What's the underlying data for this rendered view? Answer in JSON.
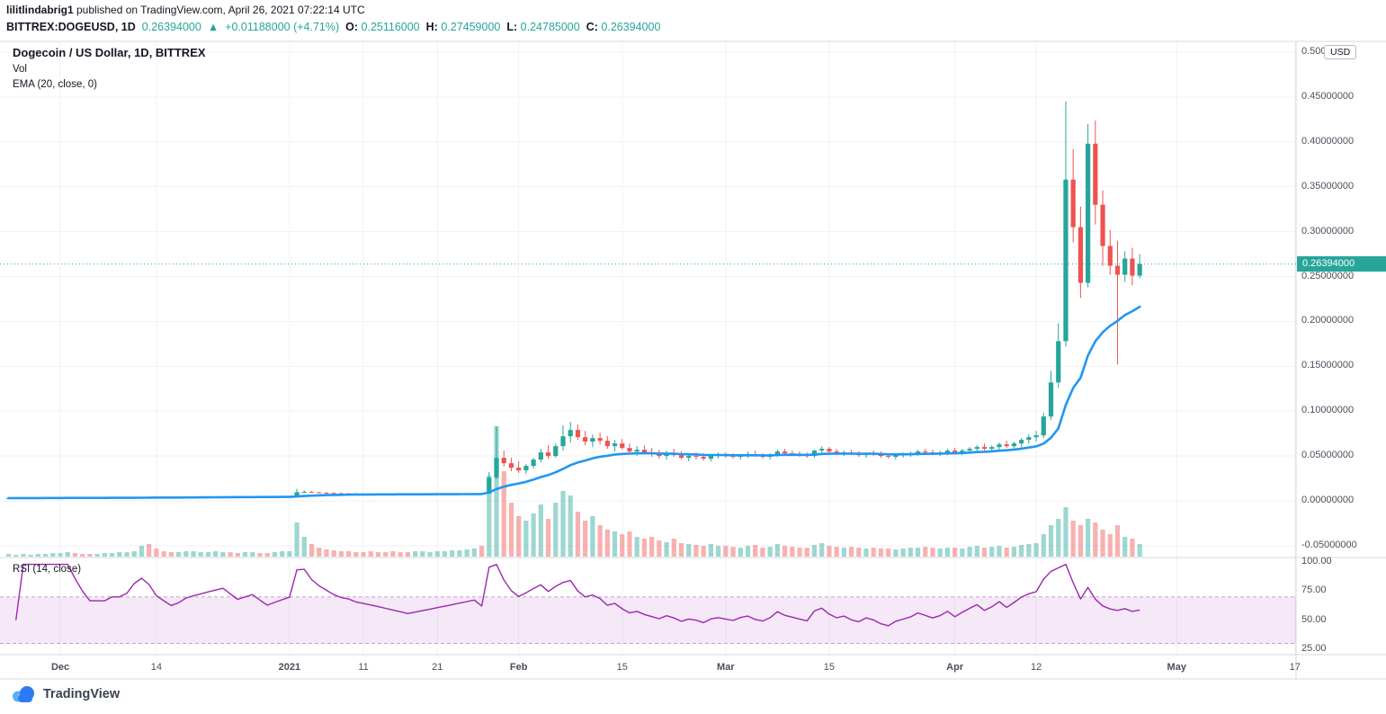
{
  "header": {
    "line1_user": "lilitlindabrig1",
    "line1_rest": " published on TradingView.com, April 26, 2021 07:22:14 UTC",
    "symbol": "BITTREX:DOGEUSD, 1D",
    "last": "0.26394000",
    "arrow": "▲",
    "change": "+0.01188000 (+4.71%)",
    "open_label": "O:",
    "open": "0.25116000",
    "high_label": "H:",
    "high": "0.27459000",
    "low_label": "L:",
    "low": "0.24785000",
    "close_label": "C:",
    "close": "0.26394000"
  },
  "legend": {
    "title": "Dogecoin / US Dollar, 1D, BITTREX",
    "vol": "Vol",
    "ema": "EMA (20, close, 0)",
    "rsi": "RSI (14, close)"
  },
  "footer": {
    "brand": "TradingView"
  },
  "chart_data": {
    "type": "candlestick",
    "title": "Dogecoin / US Dollar, 1D, BITTREX",
    "symbol": "BITTREX:DOGEUSD",
    "interval": "1D",
    "unit": "USD",
    "last_price": 0.26394,
    "last_price_label": "0.26394000",
    "ema_period": 20,
    "rsi_period": 14,
    "rsi_bands": [
      70,
      30
    ],
    "colors": {
      "up": "#26a69a",
      "down": "#ef5350",
      "ema": "#2196f3",
      "rsi": "#9c27b0",
      "band_fill": "#9c27b0",
      "badge": "#26a69a",
      "grid": "#f0f2f5",
      "frame": "#d6d8dc"
    },
    "price_axis_ticks": [
      {
        "label": "0.50000000",
        "v": 0.5
      },
      {
        "label": "0.45000000",
        "v": 0.45
      },
      {
        "label": "0.40000000",
        "v": 0.4
      },
      {
        "label": "0.35000000",
        "v": 0.35
      },
      {
        "label": "0.30000000",
        "v": 0.3
      },
      {
        "label": "0.25000000",
        "v": 0.25
      },
      {
        "label": "0.20000000",
        "v": 0.2
      },
      {
        "label": "0.15000000",
        "v": 0.15
      },
      {
        "label": "0.10000000",
        "v": 0.1
      },
      {
        "label": "0.05000000",
        "v": 0.05
      },
      {
        "label": "0.00000000",
        "v": 0.0
      },
      {
        "label": "-0.05000000",
        "v": -0.05
      }
    ],
    "rsi_axis_ticks": [
      {
        "label": "100.00",
        "v": 100
      },
      {
        "label": "75.00",
        "v": 75
      },
      {
        "label": "50.00",
        "v": 50
      },
      {
        "label": "25.00",
        "v": 25
      }
    ],
    "time_ticks": [
      {
        "label": "Dec",
        "i": 7,
        "major": true
      },
      {
        "label": "14",
        "i": 20,
        "major": false
      },
      {
        "label": "2021",
        "i": 38,
        "major": true
      },
      {
        "label": "11",
        "i": 48,
        "major": false
      },
      {
        "label": "21",
        "i": 58,
        "major": false
      },
      {
        "label": "Feb",
        "i": 69,
        "major": true
      },
      {
        "label": "15",
        "i": 83,
        "major": false
      },
      {
        "label": "Mar",
        "i": 97,
        "major": true
      },
      {
        "label": "15",
        "i": 111,
        "major": false
      },
      {
        "label": "Apr",
        "i": 128,
        "major": true
      },
      {
        "label": "12",
        "i": 139,
        "major": false
      },
      {
        "label": "May",
        "i": 158,
        "major": true
      },
      {
        "label": "17",
        "i": 174,
        "major": false
      }
    ],
    "candles": [
      [
        0.003,
        0.0032,
        0.0029,
        0.0031
      ],
      [
        0.0031,
        0.0033,
        0.003,
        0.0031
      ],
      [
        0.0031,
        0.0033,
        0.003,
        0.0032
      ],
      [
        0.0032,
        0.0033,
        0.0031,
        0.0032
      ],
      [
        0.0032,
        0.0034,
        0.0031,
        0.0033
      ],
      [
        0.0033,
        0.0035,
        0.0032,
        0.0034
      ],
      [
        0.0034,
        0.0036,
        0.0033,
        0.0035
      ],
      [
        0.0035,
        0.0037,
        0.0034,
        0.0036
      ],
      [
        0.0036,
        0.0038,
        0.0035,
        0.0037
      ],
      [
        0.0037,
        0.0038,
        0.0035,
        0.0036
      ],
      [
        0.0036,
        0.0037,
        0.0034,
        0.0035
      ],
      [
        0.0035,
        0.0036,
        0.0033,
        0.0034
      ],
      [
        0.0034,
        0.0035,
        0.0032,
        0.0034
      ],
      [
        0.0034,
        0.0035,
        0.0032,
        0.0034
      ],
      [
        0.0034,
        0.0036,
        0.0033,
        0.0035
      ],
      [
        0.0035,
        0.0036,
        0.0033,
        0.0035
      ],
      [
        0.0035,
        0.0037,
        0.0034,
        0.0036
      ],
      [
        0.0036,
        0.0041,
        0.0035,
        0.004
      ],
      [
        0.004,
        0.0046,
        0.0038,
        0.0044
      ],
      [
        0.0044,
        0.0048,
        0.0041,
        0.0043
      ],
      [
        0.0043,
        0.0045,
        0.0039,
        0.0041
      ],
      [
        0.0041,
        0.0043,
        0.0038,
        0.004
      ],
      [
        0.004,
        0.0042,
        0.0037,
        0.0039
      ],
      [
        0.0039,
        0.0041,
        0.0037,
        0.004
      ],
      [
        0.004,
        0.0043,
        0.0039,
        0.0042
      ],
      [
        0.0042,
        0.0044,
        0.004,
        0.0043
      ],
      [
        0.0043,
        0.0045,
        0.0041,
        0.0044
      ],
      [
        0.0044,
        0.0046,
        0.0042,
        0.0045
      ],
      [
        0.0045,
        0.0047,
        0.0043,
        0.0046
      ],
      [
        0.0046,
        0.0048,
        0.0044,
        0.0047
      ],
      [
        0.0047,
        0.0049,
        0.0045,
        0.0046
      ],
      [
        0.0046,
        0.0048,
        0.0044,
        0.0045
      ],
      [
        0.0045,
        0.0047,
        0.0043,
        0.0046
      ],
      [
        0.0046,
        0.0048,
        0.0044,
        0.0047
      ],
      [
        0.0047,
        0.0048,
        0.0044,
        0.0046
      ],
      [
        0.0046,
        0.0047,
        0.0043,
        0.0045
      ],
      [
        0.0045,
        0.0047,
        0.0044,
        0.0046
      ],
      [
        0.0046,
        0.0048,
        0.0045,
        0.0047
      ],
      [
        0.0047,
        0.0049,
        0.0046,
        0.0048
      ],
      [
        0.0048,
        0.0135,
        0.0047,
        0.0097
      ],
      [
        0.0097,
        0.0117,
        0.0086,
        0.0101
      ],
      [
        0.0101,
        0.0109,
        0.0089,
        0.0095
      ],
      [
        0.0095,
        0.0102,
        0.0085,
        0.0091
      ],
      [
        0.0091,
        0.0097,
        0.0083,
        0.0088
      ],
      [
        0.0088,
        0.0094,
        0.008,
        0.0085
      ],
      [
        0.0085,
        0.0091,
        0.0078,
        0.0083
      ],
      [
        0.0083,
        0.0089,
        0.0077,
        0.0082
      ],
      [
        0.0082,
        0.0087,
        0.0076,
        0.008
      ],
      [
        0.008,
        0.0085,
        0.0075,
        0.0079
      ],
      [
        0.0079,
        0.0084,
        0.0074,
        0.0078
      ],
      [
        0.0078,
        0.0083,
        0.0073,
        0.0077
      ],
      [
        0.0077,
        0.0082,
        0.0072,
        0.0076
      ],
      [
        0.0076,
        0.0081,
        0.0071,
        0.0075
      ],
      [
        0.0075,
        0.008,
        0.007,
        0.0074
      ],
      [
        0.0074,
        0.0079,
        0.007,
        0.0073
      ],
      [
        0.0073,
        0.0078,
        0.0069,
        0.0074
      ],
      [
        0.0074,
        0.0079,
        0.007,
        0.0075
      ],
      [
        0.0075,
        0.008,
        0.0071,
        0.0076
      ],
      [
        0.0076,
        0.0081,
        0.0072,
        0.0077
      ],
      [
        0.0077,
        0.0082,
        0.0073,
        0.0078
      ],
      [
        0.0078,
        0.0083,
        0.0074,
        0.0079
      ],
      [
        0.0079,
        0.0084,
        0.0075,
        0.008
      ],
      [
        0.008,
        0.0085,
        0.0076,
        0.0081
      ],
      [
        0.0081,
        0.0086,
        0.0077,
        0.0082
      ],
      [
        0.0082,
        0.0087,
        0.0078,
        0.008
      ],
      [
        0.008,
        0.032,
        0.0078,
        0.026
      ],
      [
        0.026,
        0.083,
        0.024,
        0.048
      ],
      [
        0.048,
        0.056,
        0.038,
        0.042
      ],
      [
        0.042,
        0.048,
        0.033,
        0.037
      ],
      [
        0.037,
        0.044,
        0.031,
        0.034
      ],
      [
        0.034,
        0.041,
        0.03,
        0.039
      ],
      [
        0.039,
        0.048,
        0.036,
        0.046
      ],
      [
        0.046,
        0.058,
        0.043,
        0.054
      ],
      [
        0.054,
        0.062,
        0.047,
        0.05
      ],
      [
        0.05,
        0.064,
        0.048,
        0.061
      ],
      [
        0.061,
        0.084,
        0.056,
        0.072
      ],
      [
        0.072,
        0.088,
        0.065,
        0.079
      ],
      [
        0.079,
        0.085,
        0.068,
        0.071
      ],
      [
        0.071,
        0.078,
        0.062,
        0.066
      ],
      [
        0.066,
        0.074,
        0.06,
        0.07
      ],
      [
        0.07,
        0.076,
        0.063,
        0.067
      ],
      [
        0.067,
        0.072,
        0.058,
        0.061
      ],
      [
        0.061,
        0.068,
        0.055,
        0.064
      ],
      [
        0.064,
        0.069,
        0.057,
        0.059
      ],
      [
        0.059,
        0.064,
        0.052,
        0.055
      ],
      [
        0.055,
        0.061,
        0.05,
        0.057
      ],
      [
        0.057,
        0.062,
        0.052,
        0.054
      ],
      [
        0.054,
        0.059,
        0.049,
        0.052
      ],
      [
        0.052,
        0.057,
        0.047,
        0.05
      ],
      [
        0.05,
        0.056,
        0.046,
        0.053
      ],
      [
        0.053,
        0.058,
        0.049,
        0.051
      ],
      [
        0.051,
        0.055,
        0.046,
        0.048
      ],
      [
        0.048,
        0.053,
        0.044,
        0.05
      ],
      [
        0.05,
        0.054,
        0.046,
        0.049
      ],
      [
        0.049,
        0.053,
        0.045,
        0.047
      ],
      [
        0.047,
        0.052,
        0.044,
        0.05
      ],
      [
        0.05,
        0.054,
        0.047,
        0.051
      ],
      [
        0.051,
        0.054,
        0.048,
        0.05
      ],
      [
        0.05,
        0.053,
        0.047,
        0.049
      ],
      [
        0.049,
        0.052,
        0.046,
        0.051
      ],
      [
        0.051,
        0.055,
        0.048,
        0.052
      ],
      [
        0.052,
        0.056,
        0.049,
        0.05
      ],
      [
        0.05,
        0.053,
        0.047,
        0.049
      ],
      [
        0.049,
        0.053,
        0.046,
        0.051
      ],
      [
        0.051,
        0.057,
        0.049,
        0.055
      ],
      [
        0.055,
        0.058,
        0.051,
        0.053
      ],
      [
        0.053,
        0.056,
        0.05,
        0.052
      ],
      [
        0.052,
        0.055,
        0.049,
        0.051
      ],
      [
        0.051,
        0.054,
        0.048,
        0.05
      ],
      [
        0.05,
        0.057,
        0.048,
        0.056
      ],
      [
        0.056,
        0.061,
        0.053,
        0.058
      ],
      [
        0.058,
        0.06,
        0.053,
        0.055
      ],
      [
        0.055,
        0.058,
        0.051,
        0.053
      ],
      [
        0.053,
        0.056,
        0.05,
        0.054
      ],
      [
        0.054,
        0.057,
        0.051,
        0.052
      ],
      [
        0.052,
        0.055,
        0.049,
        0.051
      ],
      [
        0.051,
        0.054,
        0.048,
        0.053
      ],
      [
        0.053,
        0.056,
        0.05,
        0.052
      ],
      [
        0.052,
        0.055,
        0.048,
        0.05
      ],
      [
        0.05,
        0.053,
        0.047,
        0.049
      ],
      [
        0.049,
        0.052,
        0.046,
        0.051
      ],
      [
        0.051,
        0.054,
        0.048,
        0.052
      ],
      [
        0.052,
        0.055,
        0.049,
        0.053
      ],
      [
        0.053,
        0.057,
        0.05,
        0.055
      ],
      [
        0.055,
        0.058,
        0.052,
        0.054
      ],
      [
        0.054,
        0.057,
        0.051,
        0.053
      ],
      [
        0.053,
        0.056,
        0.05,
        0.054
      ],
      [
        0.054,
        0.058,
        0.051,
        0.056
      ],
      [
        0.056,
        0.059,
        0.052,
        0.054
      ],
      [
        0.054,
        0.058,
        0.051,
        0.056
      ],
      [
        0.056,
        0.06,
        0.053,
        0.058
      ],
      [
        0.058,
        0.062,
        0.055,
        0.06
      ],
      [
        0.06,
        0.064,
        0.056,
        0.058
      ],
      [
        0.058,
        0.062,
        0.055,
        0.06
      ],
      [
        0.06,
        0.065,
        0.057,
        0.063
      ],
      [
        0.063,
        0.067,
        0.059,
        0.061
      ],
      [
        0.061,
        0.066,
        0.058,
        0.064
      ],
      [
        0.064,
        0.07,
        0.06,
        0.068
      ],
      [
        0.068,
        0.074,
        0.064,
        0.071
      ],
      [
        0.071,
        0.078,
        0.066,
        0.073
      ],
      [
        0.073,
        0.098,
        0.07,
        0.094
      ],
      [
        0.094,
        0.145,
        0.09,
        0.132
      ],
      [
        0.132,
        0.198,
        0.126,
        0.178
      ],
      [
        0.178,
        0.445,
        0.172,
        0.358
      ],
      [
        0.358,
        0.392,
        0.288,
        0.305
      ],
      [
        0.305,
        0.328,
        0.226,
        0.243
      ],
      [
        0.243,
        0.42,
        0.238,
        0.398
      ],
      [
        0.398,
        0.424,
        0.308,
        0.33
      ],
      [
        0.33,
        0.346,
        0.262,
        0.284
      ],
      [
        0.284,
        0.302,
        0.252,
        0.262
      ],
      [
        0.262,
        0.29,
        0.152,
        0.252
      ],
      [
        0.252,
        0.278,
        0.244,
        0.27
      ],
      [
        0.27,
        0.282,
        0.24,
        0.251
      ],
      [
        0.251,
        0.275,
        0.248,
        0.264
      ]
    ],
    "volume": [
      3,
      2,
      3,
      2,
      3,
      3,
      4,
      4,
      5,
      4,
      3,
      3,
      3,
      4,
      4,
      5,
      5,
      6,
      12,
      14,
      9,
      6,
      5,
      5,
      6,
      6,
      5,
      5,
      6,
      5,
      5,
      4,
      5,
      5,
      4,
      4,
      5,
      6,
      6,
      38,
      22,
      14,
      10,
      8,
      7,
      6,
      6,
      5,
      5,
      6,
      5,
      5,
      6,
      5,
      5,
      6,
      6,
      5,
      6,
      6,
      7,
      7,
      8,
      9,
      12,
      90,
      145,
      95,
      60,
      45,
      40,
      48,
      58,
      42,
      60,
      73,
      68,
      50,
      40,
      45,
      35,
      30,
      28,
      25,
      28,
      22,
      20,
      22,
      18,
      16,
      20,
      15,
      14,
      13,
      12,
      14,
      12,
      12,
      11,
      10,
      12,
      13,
      10,
      11,
      14,
      12,
      11,
      10,
      10,
      13,
      15,
      12,
      11,
      10,
      11,
      10,
      9,
      10,
      9,
      9,
      8,
      9,
      10,
      10,
      11,
      10,
      9,
      10,
      10,
      9,
      11,
      12,
      10,
      11,
      12,
      10,
      11,
      13,
      14,
      15,
      25,
      35,
      42,
      55,
      40,
      35,
      42,
      38,
      30,
      25,
      35,
      22,
      20,
      14
    ]
  }
}
